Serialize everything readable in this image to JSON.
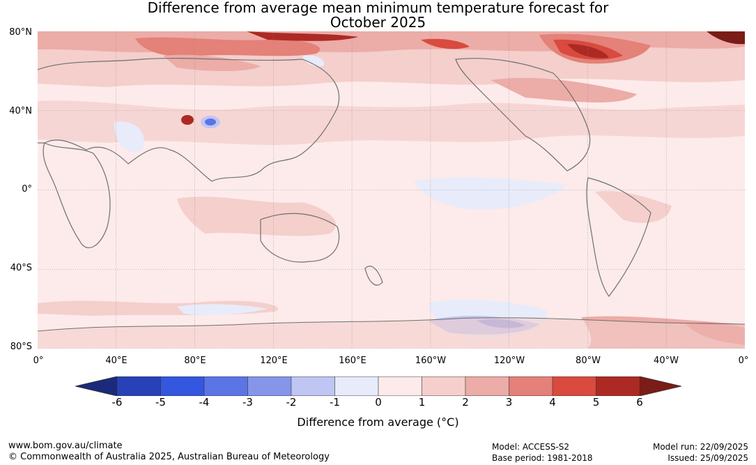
{
  "title_line1": "Difference from average mean minimum temperature forecast for",
  "title_line2": "October 2025",
  "lat_labels": [
    "80°N",
    "40°N",
    "0°",
    "40°S",
    "80°S"
  ],
  "lon_labels": [
    "0°",
    "40°E",
    "80°E",
    "120°E",
    "160°E",
    "160°W",
    "120°W",
    "80°W",
    "40°W",
    "0°"
  ],
  "colorbar": {
    "ticks": [
      "-6",
      "-5",
      "-4",
      "-3",
      "-2",
      "-1",
      "0",
      "1",
      "2",
      "3",
      "4",
      "5",
      "6"
    ],
    "colors": [
      "#1b2a7a",
      "#2841b8",
      "#3457e0",
      "#5b74e6",
      "#8596ea",
      "#bfc6f3",
      "#e8ebfa",
      "#fcebea",
      "#f4cfcc",
      "#ecaca7",
      "#e48179",
      "#d94a3f",
      "#ad2a24",
      "#7a1c17"
    ],
    "label": "Difference from average (°C)"
  },
  "footer": {
    "url": "www.bom.gov.au/climate",
    "copyright": "© Commonwealth of Australia 2025, Australian Bureau of Meteorology",
    "model": "Model: ACCESS-S2",
    "base_period": "Base period: 1981-2018",
    "model_run": "Model run: 22/09/2025",
    "issued": "Issued: 25/09/2025"
  }
}
